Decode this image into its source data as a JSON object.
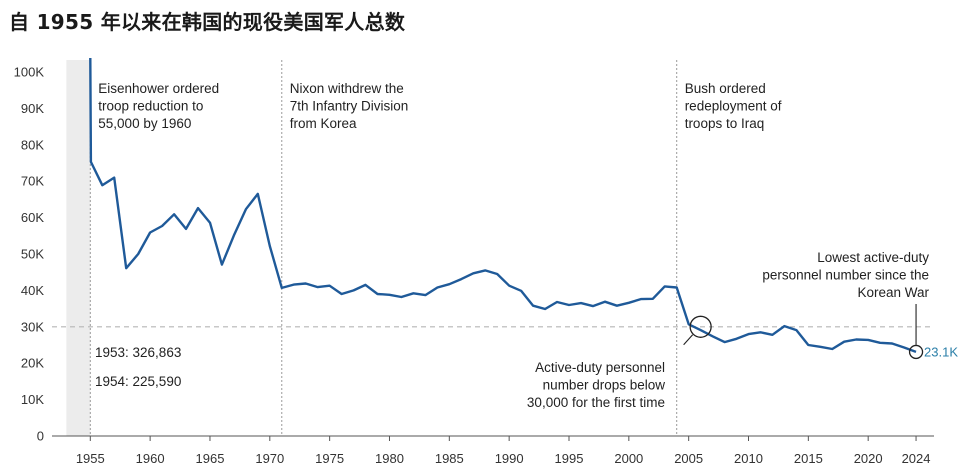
{
  "title": "自 1955 年以来在韩国的现役美国军人总数",
  "chart_data": {
    "type": "line",
    "title": "自 1955 年以来在韩国的现役美国军人总数",
    "xlabel": "",
    "ylabel": "",
    "xlim": [
      1951.8,
      2025.5
    ],
    "ylim": [
      0,
      100000
    ],
    "grid": false,
    "x_ticks": [
      1955,
      1960,
      1965,
      1970,
      1975,
      1980,
      1985,
      1990,
      1995,
      2000,
      2005,
      2010,
      2015,
      2020,
      2024
    ],
    "y_ticks": [
      0,
      10000,
      20000,
      30000,
      40000,
      50000,
      60000,
      70000,
      80000,
      90000,
      100000
    ],
    "y_tick_labels": [
      "0",
      "10K",
      "20K",
      "30K",
      "40K",
      "50K",
      "60K",
      "70K",
      "80K",
      "90K",
      "100K"
    ],
    "reference_line": {
      "y": 30000,
      "style": "dashed"
    },
    "shaded_region": {
      "x": [
        1953,
        1955
      ]
    },
    "series": [
      {
        "color": "#1f5a99",
        "x": [
          1955,
          1955.05,
          1956,
          1957,
          1958,
          1959,
          1960,
          1961,
          1962,
          1963,
          1964,
          1965,
          1966,
          1967,
          1968,
          1969,
          1970,
          1971,
          1972,
          1973,
          1974,
          1975,
          1976,
          1977,
          1978,
          1979,
          1980,
          1981,
          1982,
          1983,
          1984,
          1985,
          1986,
          1987,
          1988,
          1989,
          1990,
          1991,
          1992,
          1993,
          1994,
          1995,
          1996,
          1997,
          1998,
          1999,
          2000,
          2001,
          2002,
          2003,
          2004,
          2005,
          2006,
          2007,
          2008,
          2009,
          2010,
          2011,
          2012,
          2013,
          2014,
          2015,
          2016,
          2017,
          2018,
          2019,
          2020,
          2021,
          2022,
          2023,
          2024
        ],
        "y": [
          104000,
          75300,
          68900,
          71000,
          46100,
          50000,
          55900,
          57700,
          60900,
          56900,
          62600,
          58600,
          47100,
          55100,
          62300,
          66500,
          52200,
          40700,
          41600,
          41900,
          40900,
          41300,
          39000,
          40000,
          41500,
          39000,
          38800,
          38200,
          39200,
          38700,
          40800,
          41700,
          43100,
          44700,
          45500,
          44500,
          41300,
          39900,
          35800,
          34900,
          36800,
          36000,
          36500,
          35700,
          36900,
          35800,
          36600,
          37600,
          37700,
          41100,
          40800,
          30700,
          29100,
          27400,
          25800,
          26700,
          28000,
          28500,
          27800,
          30200,
          29100,
          25000,
          24500,
          23900,
          25900,
          26500,
          26400,
          25600,
          25400,
          24300,
          23100
        ]
      }
    ],
    "annotations": [
      {
        "year": 1955,
        "lines": [
          "Eisenhower ordered",
          "troop reduction to",
          "55,000 by 1960"
        ]
      },
      {
        "year": 1971,
        "lines": [
          "Nixon withdrew the",
          "7th Infantry Division",
          "from Korea"
        ]
      },
      {
        "year": 2004,
        "lines": [
          "Bush ordered",
          "redeployment of",
          "troops to Iraq"
        ]
      }
    ],
    "notes": [
      "1953: 326,863",
      "1954: 225,590"
    ],
    "callout_low_30k": {
      "x": 2006,
      "y": 30000,
      "lines": [
        "Active-duty personnel",
        "number drops below",
        "30,000 for the first time"
      ]
    },
    "callout_lowest": {
      "x": 2024,
      "y": 23100,
      "lines": [
        "Lowest active-duty",
        "personnel number since the",
        "Korean War"
      ]
    },
    "end_label": "23.1K"
  }
}
